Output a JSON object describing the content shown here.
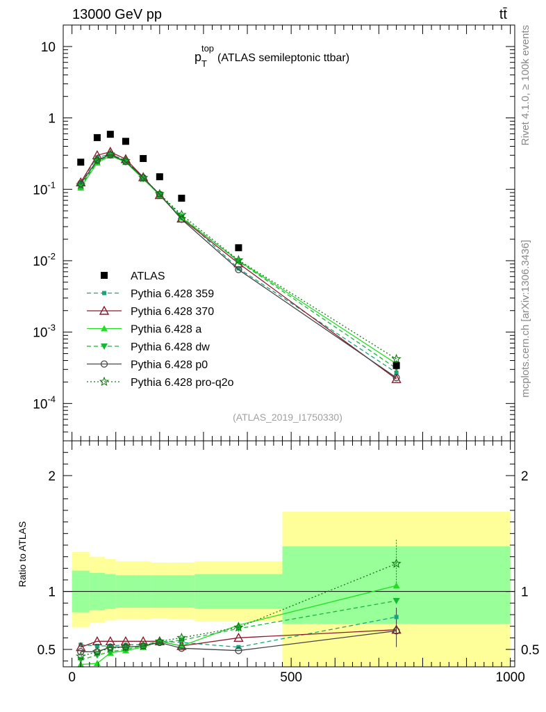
{
  "header": {
    "left": "13000 GeV pp",
    "right": "tt̄"
  },
  "side_labels": {
    "top": "Rivet 4.1.0, ≥ 100k events",
    "bottom": "mcplots.cern.ch [arXiv:1306.3436]"
  },
  "colors": {
    "atlas": "#000000",
    "p359": "#1aa37a",
    "p370": "#8b1a2b",
    "pa": "#22dd22",
    "pdw": "#14b832",
    "pp0": "#444444",
    "pq2o": "#117711",
    "band_inner": "#99ff99",
    "band_outer": "#ffff99"
  },
  "chart_data": [
    {
      "type": "scatter",
      "title": "p_T^top (ATLAS semileptonic ttbar)",
      "title_main": "p",
      "title_sub": "T",
      "title_sup": "top",
      "title_rest": "(ATLAS semileptonic ttbar)",
      "analysis_tag": "(ATLAS_2019_I1750330)",
      "yscale": "log",
      "ylim": [
        3e-05,
        20
      ],
      "xlim": [
        -20,
        1010
      ],
      "ytick_labels": [
        {
          "value": 10,
          "base": "10",
          "exp": ""
        },
        {
          "value": 1,
          "base": "1",
          "exp": ""
        },
        {
          "value": 0.1,
          "base": "10",
          "exp": "-1"
        },
        {
          "value": 0.01,
          "base": "10",
          "exp": "-2"
        },
        {
          "value": 0.001,
          "base": "10",
          "exp": "-3"
        },
        {
          "value": 0.0001,
          "base": "10",
          "exp": "-4"
        }
      ],
      "x": [
        20,
        57.5,
        87.5,
        122.5,
        162.5,
        200,
        250,
        380,
        740
      ],
      "series": [
        {
          "name": "ATLAS",
          "key": "atlas",
          "marker": "square",
          "line": "none",
          "values": [
            0.24,
            0.53,
            0.59,
            0.47,
            0.27,
            0.15,
            0.075,
            0.0152,
            0.00034
          ]
        },
        {
          "name": "Pythia 6.428 359",
          "key": "p359",
          "marker": "small-square",
          "line": "dashed",
          "values": [
            0.125,
            0.28,
            0.31,
            0.255,
            0.145,
            0.085,
            0.042,
            0.0078,
            0.00027
          ]
        },
        {
          "name": "Pythia 6.428 370",
          "key": "p370",
          "marker": "open-triangle",
          "line": "solid",
          "values": [
            0.125,
            0.3,
            0.335,
            0.265,
            0.148,
            0.083,
            0.039,
            0.0092,
            0.00022
          ]
        },
        {
          "name": "Pythia 6.428 a",
          "key": "pa",
          "marker": "triangle",
          "line": "solid",
          "values": [
            0.105,
            0.235,
            0.295,
            0.24,
            0.14,
            0.083,
            0.04,
            0.01,
            0.00036
          ]
        },
        {
          "name": "Pythia 6.428 dw",
          "key": "pdw",
          "marker": "triangle-down",
          "line": "dashed",
          "values": [
            0.11,
            0.245,
            0.3,
            0.245,
            0.14,
            0.085,
            0.041,
            0.0098,
            0.00031
          ]
        },
        {
          "name": "Pythia 6.428 p0",
          "key": "pp0",
          "marker": "open-circle",
          "line": "solid",
          "values": [
            0.12,
            0.255,
            0.305,
            0.245,
            0.145,
            0.085,
            0.038,
            0.0075,
            0.00023
          ]
        },
        {
          "name": "Pythia 6.428 pro-q2o",
          "key": "pq2o",
          "marker": "star",
          "line": "dotted",
          "values": [
            0.115,
            0.255,
            0.31,
            0.25,
            0.145,
            0.086,
            0.044,
            0.0102,
            0.00042
          ]
        }
      ]
    },
    {
      "type": "scatter",
      "title": "Ratio to ATLAS",
      "ylabel": "Ratio to ATLAS",
      "ylim": [
        0.35,
        2.3
      ],
      "xlim": [
        -20,
        1010
      ],
      "yticks": [
        0.5,
        1,
        2
      ],
      "ytick_labels": [
        "0.5",
        "1",
        "2"
      ],
      "xticks": [
        0,
        500,
        1000
      ],
      "xtick_labels": [
        "0",
        "500",
        "1000"
      ],
      "bins": [
        {
          "lo": 0,
          "hi": 40,
          "inner": [
            0.82,
            1.18
          ],
          "outer": [
            0.69,
            1.34
          ]
        },
        {
          "lo": 40,
          "hi": 75,
          "inner": [
            0.84,
            1.16
          ],
          "outer": [
            0.73,
            1.3
          ]
        },
        {
          "lo": 75,
          "hi": 100,
          "inner": [
            0.85,
            1.15
          ],
          "outer": [
            0.75,
            1.28
          ]
        },
        {
          "lo": 100,
          "hi": 145,
          "inner": [
            0.86,
            1.14
          ],
          "outer": [
            0.76,
            1.26
          ]
        },
        {
          "lo": 145,
          "hi": 180,
          "inner": [
            0.86,
            1.14
          ],
          "outer": [
            0.76,
            1.26
          ]
        },
        {
          "lo": 180,
          "hi": 220,
          "inner": [
            0.86,
            1.14
          ],
          "outer": [
            0.77,
            1.25
          ]
        },
        {
          "lo": 220,
          "hi": 280,
          "inner": [
            0.86,
            1.14
          ],
          "outer": [
            0.76,
            1.25
          ]
        },
        {
          "lo": 280,
          "hi": 480,
          "inner": [
            0.85,
            1.15
          ],
          "outer": [
            0.74,
            1.26
          ]
        },
        {
          "lo": 480,
          "hi": 1000,
          "inner": [
            0.72,
            1.39
          ],
          "outer": [
            0.35,
            1.69
          ]
        }
      ],
      "x": [
        20,
        57.5,
        87.5,
        122.5,
        162.5,
        200,
        250,
        380,
        740
      ],
      "series": [
        {
          "name": "Pythia 6.428 359",
          "key": "p359",
          "values": [
            0.54,
            0.53,
            0.53,
            0.54,
            0.54,
            0.57,
            0.56,
            0.52,
            0.78
          ]
        },
        {
          "name": "Pythia 6.428 370",
          "key": "p370",
          "values": [
            0.52,
            0.57,
            0.57,
            0.57,
            0.57,
            0.57,
            0.53,
            0.6,
            0.67
          ]
        },
        {
          "name": "Pythia 6.428 a",
          "key": "pa",
          "values": [
            0.37,
            0.38,
            0.47,
            0.49,
            0.52,
            0.57,
            0.53,
            0.71,
            1.05
          ]
        },
        {
          "name": "Pythia 6.428 dw",
          "key": "pdw",
          "values": [
            0.41,
            0.45,
            0.48,
            0.5,
            0.53,
            0.56,
            0.58,
            0.68,
            0.92
          ]
        },
        {
          "name": "Pythia 6.428 p0",
          "key": "pp0",
          "values": [
            0.48,
            0.48,
            0.52,
            0.52,
            0.53,
            0.56,
            0.51,
            0.49,
            0.66
          ]
        },
        {
          "name": "Pythia 6.428 pro-q2o",
          "key": "pq2o",
          "values": [
            0.44,
            0.48,
            0.51,
            0.52,
            0.53,
            0.57,
            0.6,
            0.69,
            1.24
          ]
        }
      ]
    }
  ]
}
